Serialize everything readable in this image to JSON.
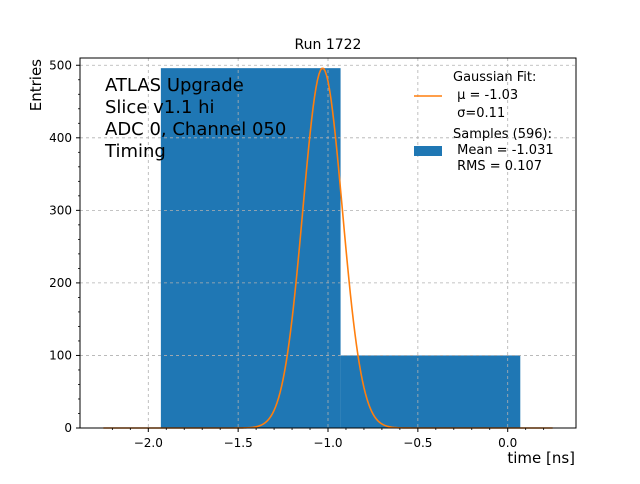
{
  "chart_data": {
    "type": "bar",
    "title": "Run 1722",
    "xlabel": "time [ns]",
    "ylabel": "Entries",
    "xlim": [
      -2.38,
      0.38
    ],
    "ylim": [
      0,
      510
    ],
    "x_ticks": [
      -2.0,
      -1.5,
      -1.0,
      -0.5,
      0.0
    ],
    "x_tick_labels": [
      "−2.0",
      "−1.5",
      "−1.0",
      "−0.5",
      "0.0"
    ],
    "y_ticks": [
      0,
      100,
      200,
      300,
      400,
      500
    ],
    "y_tick_labels": [
      "0",
      "100",
      "200",
      "300",
      "400",
      "500"
    ],
    "grid": true,
    "histogram": {
      "bins": [
        {
          "x0": -1.93,
          "x1": -0.93,
          "count": 496
        },
        {
          "x0": -0.93,
          "x1": 0.07,
          "count": 100
        }
      ],
      "color": "#1f77b4"
    },
    "fit": {
      "type": "gaussian",
      "mu": -1.03,
      "sigma": 0.11,
      "amplitude": 496,
      "x_range": [
        -2.25,
        0.25
      ],
      "color": "#ff7f0e"
    },
    "annotation_lines": [
      "ATLAS Upgrade",
      "Slice v1.1 hi",
      "ADC 0, Channel 050",
      "Timing"
    ],
    "legend": {
      "placement": "top-right",
      "fit_lines": [
        "Gaussian Fit:",
        " μ = -1.03",
        " σ=0.11"
      ],
      "sample_lines": [
        "Samples (596):",
        " Mean = -1.031",
        " RMS = 0.107"
      ]
    }
  }
}
